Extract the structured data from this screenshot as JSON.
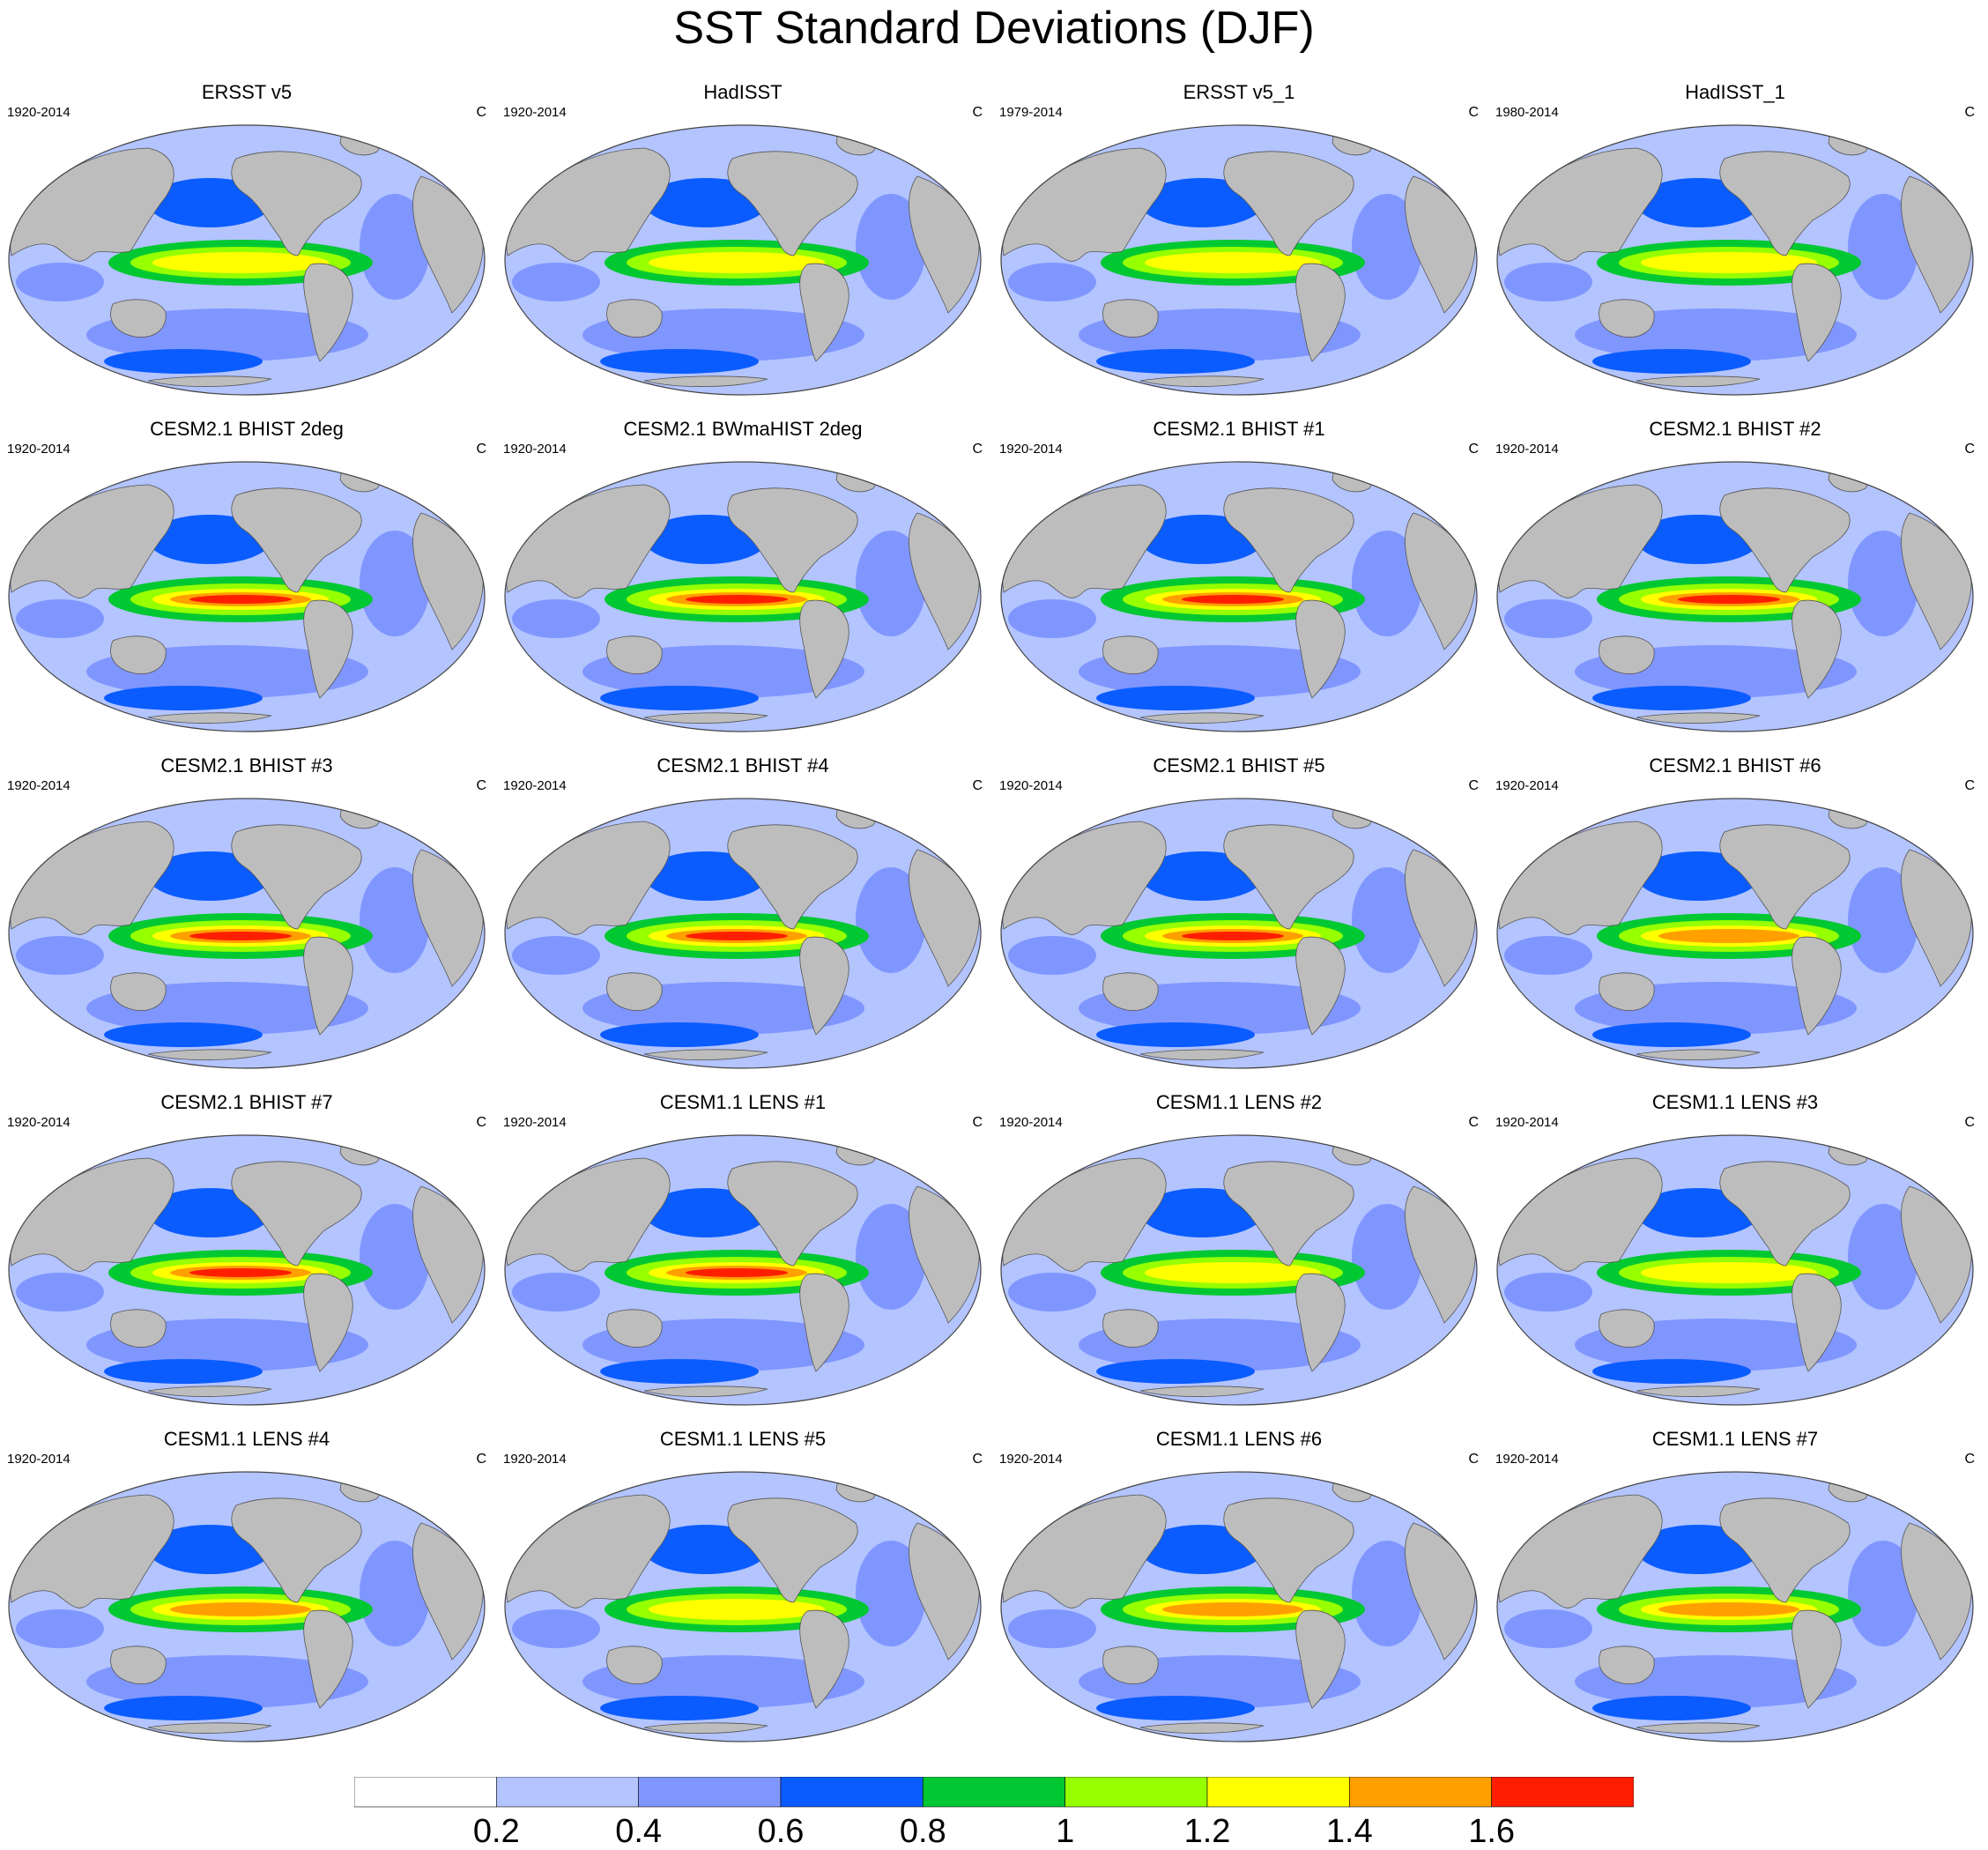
{
  "title": "SST Standard Deviations (DJF)",
  "panels": [
    {
      "title": "ERSST v5",
      "years": "1920-2014",
      "units": "C",
      "nino_max": 1.2
    },
    {
      "title": "HadISST",
      "years": "1920-2014",
      "units": "C",
      "nino_max": 1.2
    },
    {
      "title": "ERSST v5_1",
      "years": "1979-2014",
      "units": "C",
      "nino_max": 1.2
    },
    {
      "title": "HadISST_1",
      "years": "1980-2014",
      "units": "C",
      "nino_max": 1.2
    },
    {
      "title": "CESM2.1 BHIST 2deg",
      "years": "1920-2014",
      "units": "C",
      "nino_max": 1.6
    },
    {
      "title": "CESM2.1 BWmaHIST 2deg",
      "years": "1920-2014",
      "units": "C",
      "nino_max": 1.6
    },
    {
      "title": "CESM2.1 BHIST #1",
      "years": "1920-2014",
      "units": "C",
      "nino_max": 1.6
    },
    {
      "title": "CESM2.1 BHIST #2",
      "years": "1920-2014",
      "units": "C",
      "nino_max": 1.6
    },
    {
      "title": "CESM2.1 BHIST #3",
      "years": "1920-2014",
      "units": "C",
      "nino_max": 1.6
    },
    {
      "title": "CESM2.1 BHIST #4",
      "years": "1920-2014",
      "units": "C",
      "nino_max": 1.6
    },
    {
      "title": "CESM2.1 BHIST #5",
      "years": "1920-2014",
      "units": "C",
      "nino_max": 1.6
    },
    {
      "title": "CESM2.1 BHIST #6",
      "years": "1920-2014",
      "units": "C",
      "nino_max": 1.4
    },
    {
      "title": "CESM2.1 BHIST #7",
      "years": "1920-2014",
      "units": "C",
      "nino_max": 1.6
    },
    {
      "title": "CESM1.1 LENS #1",
      "years": "1920-2014",
      "units": "C",
      "nino_max": 1.6
    },
    {
      "title": "CESM1.1 LENS #2",
      "years": "1920-2014",
      "units": "C",
      "nino_max": 1.2
    },
    {
      "title": "CESM1.1 LENS #3",
      "years": "1920-2014",
      "units": "C",
      "nino_max": 1.2
    },
    {
      "title": "CESM1.1 LENS #4",
      "years": "1920-2014",
      "units": "C",
      "nino_max": 1.4
    },
    {
      "title": "CESM1.1 LENS #5",
      "years": "1920-2014",
      "units": "C",
      "nino_max": 1.2
    },
    {
      "title": "CESM1.1 LENS #6",
      "years": "1920-2014",
      "units": "C",
      "nino_max": 1.4
    },
    {
      "title": "CESM1.1 LENS #7",
      "years": "1920-2014",
      "units": "C",
      "nino_max": 1.4
    }
  ],
  "colorbar": {
    "levels": [
      0.2,
      0.4,
      0.6,
      0.8,
      1,
      1.2,
      1.4,
      1.6
    ],
    "labels": [
      "0.2",
      "0.4",
      "0.6",
      "0.8",
      "1",
      "1.2",
      "1.4",
      "1.6"
    ],
    "colors": [
      "#ffffff",
      "#b3c4ff",
      "#8096ff",
      "#0a5cff",
      "#00c832",
      "#96ff00",
      "#ffff00",
      "#ffa000",
      "#ff1e00"
    ]
  },
  "land_color": "#bdbdbd"
}
